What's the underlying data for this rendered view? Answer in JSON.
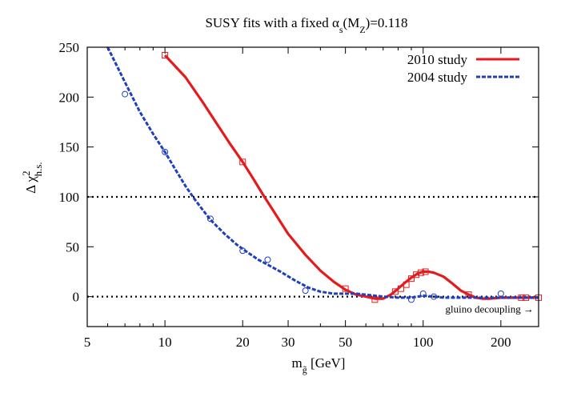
{
  "chart_data": {
    "type": "line",
    "title": {
      "main": "SUSY fits with a fixed α",
      "sub1": "s",
      "mid": "(M",
      "sub2": "Z",
      "end": ")=0.118"
    },
    "xlabel": {
      "main": "m",
      "sub": "g̃",
      "unit": "  [GeV]"
    },
    "ylabel": {
      "main": "Δ χ",
      "sup": "2",
      "sub": "h.s."
    },
    "x_scale": "log",
    "xlim": [
      5,
      280
    ],
    "ylim": [
      -30,
      250
    ],
    "x_ticks": [
      5,
      10,
      20,
      30,
      50,
      100,
      200
    ],
    "x_tick_labels": [
      "5",
      "10",
      "20",
      "30",
      "50",
      "100",
      "200"
    ],
    "y_ticks": [
      0,
      50,
      100,
      150,
      200,
      250
    ],
    "y_tick_labels": [
      "0",
      "50",
      "100",
      "150",
      "200",
      "250"
    ],
    "legend_position": "top-right",
    "reference_lines": [
      0,
      100
    ],
    "annotation": "gluino decoupling →",
    "colors": {
      "study_2010": "#e41a1c",
      "study_2004": "#1f3fbf"
    },
    "series": [
      {
        "name": "2010 study",
        "style": "solid",
        "curve": [
          [
            10,
            242
          ],
          [
            12,
            220
          ],
          [
            14,
            195
          ],
          [
            16,
            172
          ],
          [
            18,
            152
          ],
          [
            20,
            135
          ],
          [
            22,
            118
          ],
          [
            24,
            102
          ],
          [
            26,
            88
          ],
          [
            28,
            75
          ],
          [
            30,
            63
          ],
          [
            35,
            42
          ],
          [
            40,
            26
          ],
          [
            45,
            15
          ],
          [
            50,
            7
          ],
          [
            55,
            2
          ],
          [
            60,
            0
          ],
          [
            65,
            -2
          ],
          [
            70,
            -2
          ],
          [
            75,
            2
          ],
          [
            80,
            8
          ],
          [
            85,
            14
          ],
          [
            90,
            19
          ],
          [
            95,
            23
          ],
          [
            100,
            25
          ],
          [
            105,
            25
          ],
          [
            110,
            24
          ],
          [
            120,
            20
          ],
          [
            130,
            13
          ],
          [
            140,
            6
          ],
          [
            150,
            2
          ],
          [
            160,
            -1
          ],
          [
            170,
            -2
          ],
          [
            180,
            -2
          ],
          [
            200,
            -1
          ],
          [
            220,
            -1
          ],
          [
            250,
            -1
          ],
          [
            280,
            -1
          ]
        ],
        "points": [
          [
            10,
            242
          ],
          [
            20,
            135
          ],
          [
            50,
            8
          ],
          [
            65,
            -3
          ],
          [
            78,
            5
          ],
          [
            82,
            8
          ],
          [
            86,
            12
          ],
          [
            90,
            18
          ],
          [
            94,
            22
          ],
          [
            98,
            24
          ],
          [
            102,
            25
          ],
          [
            150,
            2
          ],
          [
            240,
            -1
          ],
          [
            250,
            -1
          ],
          [
            280,
            -1
          ]
        ]
      },
      {
        "name": "2004 study",
        "style": "dashed",
        "curve": [
          [
            6,
            250
          ],
          [
            7,
            215
          ],
          [
            8,
            185
          ],
          [
            9,
            163
          ],
          [
            10,
            145
          ],
          [
            11,
            127
          ],
          [
            12,
            111
          ],
          [
            13,
            98
          ],
          [
            14,
            87
          ],
          [
            15,
            77
          ],
          [
            17,
            63
          ],
          [
            19,
            52
          ],
          [
            21,
            44
          ],
          [
            23,
            37
          ],
          [
            25,
            32
          ],
          [
            28,
            25
          ],
          [
            32,
            16
          ],
          [
            36,
            9
          ],
          [
            40,
            5
          ],
          [
            45,
            3
          ],
          [
            50,
            3
          ],
          [
            55,
            3
          ],
          [
            60,
            2
          ],
          [
            70,
            0
          ],
          [
            80,
            -1
          ],
          [
            90,
            -1
          ],
          [
            100,
            1
          ],
          [
            110,
            0
          ],
          [
            120,
            -1
          ],
          [
            150,
            -1
          ],
          [
            200,
            -1
          ],
          [
            280,
            -1
          ]
        ],
        "points": [
          [
            7,
            203
          ],
          [
            10,
            145
          ],
          [
            15,
            78
          ],
          [
            20,
            46
          ],
          [
            25,
            37
          ],
          [
            35,
            6
          ],
          [
            90,
            -3
          ],
          [
            100,
            3
          ],
          [
            110,
            0
          ],
          [
            200,
            3
          ]
        ]
      }
    ]
  }
}
